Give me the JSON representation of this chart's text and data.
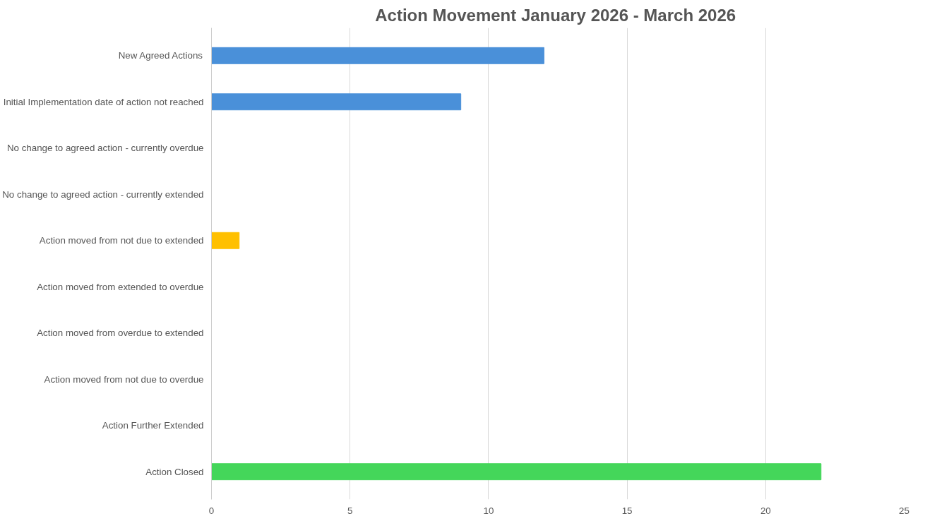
{
  "chart_data": {
    "type": "bar",
    "orientation": "horizontal",
    "title": "Action Movement January 2026  - March 2026",
    "categories": [
      "New Agreed Actions",
      "Initial Implementation date of action not reached",
      "No change to agreed action - currently overdue",
      "No change to agreed action - currently extended",
      "Action moved from not due to extended",
      "Action moved from extended to overdue",
      "Action moved from overdue to extended",
      "Action moved from not due to overdue",
      "Action Further Extended",
      "Action Closed"
    ],
    "values": [
      12,
      9,
      0,
      0,
      1,
      0,
      0,
      0,
      0,
      22
    ],
    "colors": [
      "#4a90d9",
      "#4a90d9",
      "#4a90d9",
      "#4a90d9",
      "#ffc000",
      "#4a90d9",
      "#4a90d9",
      "#4a90d9",
      "#4a90d9",
      "#44d65a"
    ],
    "xlim": [
      0,
      25
    ],
    "xticks": [
      0,
      5,
      10,
      15,
      20,
      25
    ],
    "grid": "x"
  }
}
